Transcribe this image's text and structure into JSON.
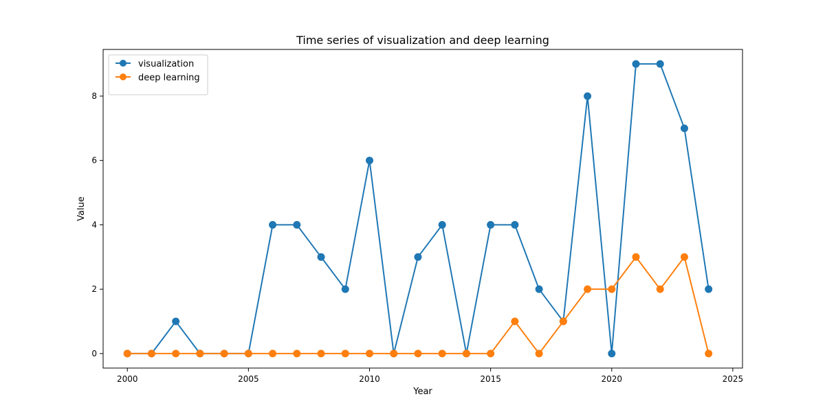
{
  "chart_data": {
    "type": "line",
    "title": "Time series of visualization and deep learning",
    "xlabel": "Year",
    "ylabel": "Value",
    "x": [
      2000,
      2001,
      2002,
      2003,
      2004,
      2005,
      2006,
      2007,
      2008,
      2009,
      2010,
      2011,
      2012,
      2013,
      2014,
      2015,
      2016,
      2017,
      2018,
      2019,
      2020,
      2021,
      2022,
      2023,
      2024
    ],
    "xlim": [
      1999,
      2025.4
    ],
    "ylim": [
      -0.45,
      9.45
    ],
    "xticks": [
      2000,
      2005,
      2010,
      2015,
      2020,
      2025
    ],
    "yticks": [
      0,
      2,
      4,
      6,
      8
    ],
    "grid": false,
    "legend_position": "top-left",
    "series": [
      {
        "name": "visualization",
        "color": "#1f77b4",
        "values": [
          0,
          0,
          1,
          0,
          0,
          0,
          4,
          4,
          3,
          2,
          6,
          0,
          3,
          4,
          0,
          4,
          4,
          2,
          1,
          8,
          0,
          9,
          9,
          7,
          2
        ]
      },
      {
        "name": "deep learning",
        "color": "#ff7f0e",
        "values": [
          0,
          0,
          0,
          0,
          0,
          0,
          0,
          0,
          0,
          0,
          0,
          0,
          0,
          0,
          0,
          0,
          1,
          0,
          1,
          2,
          2,
          3,
          2,
          3,
          0
        ]
      }
    ]
  }
}
